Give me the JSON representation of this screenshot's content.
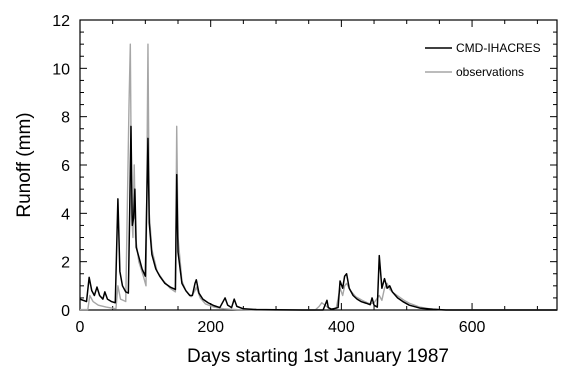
{
  "chart_data": {
    "type": "line",
    "title": "",
    "xlabel": "Days starting 1st January 1987",
    "ylabel": "Runoff (mm)",
    "xlim": [
      0,
      730
    ],
    "ylim": [
      0,
      12
    ],
    "xticks": [
      0,
      200,
      400,
      600
    ],
    "yticks": [
      0,
      2,
      4,
      6,
      8,
      10,
      12
    ],
    "legend_position": "top-right",
    "grid": false,
    "series": [
      {
        "name": "CMD-IHACRES",
        "color": "#000000",
        "points": [
          [
            0,
            0.45
          ],
          [
            10,
            0.35
          ],
          [
            14,
            1.35
          ],
          [
            18,
            0.8
          ],
          [
            22,
            0.6
          ],
          [
            26,
            0.95
          ],
          [
            30,
            0.6
          ],
          [
            35,
            0.45
          ],
          [
            38,
            0.75
          ],
          [
            42,
            0.45
          ],
          [
            48,
            0.35
          ],
          [
            54,
            0.3
          ],
          [
            58,
            4.6
          ],
          [
            61,
            1.6
          ],
          [
            65,
            1.0
          ],
          [
            70,
            0.75
          ],
          [
            74,
            0.7
          ],
          [
            76,
            4.0
          ],
          [
            78,
            7.6
          ],
          [
            80,
            3.5
          ],
          [
            82,
            3.8
          ],
          [
            84,
            5.0
          ],
          [
            86,
            2.6
          ],
          [
            90,
            2.2
          ],
          [
            95,
            1.7
          ],
          [
            100,
            1.4
          ],
          [
            104,
            7.1
          ],
          [
            106,
            3.6
          ],
          [
            110,
            2.3
          ],
          [
            116,
            1.7
          ],
          [
            122,
            1.4
          ],
          [
            130,
            1.1
          ],
          [
            138,
            0.95
          ],
          [
            146,
            0.85
          ],
          [
            148,
            5.6
          ],
          [
            150,
            2.4
          ],
          [
            156,
            1.1
          ],
          [
            162,
            0.8
          ],
          [
            168,
            0.6
          ],
          [
            172,
            0.6
          ],
          [
            176,
            1.1
          ],
          [
            178,
            1.25
          ],
          [
            182,
            0.7
          ],
          [
            188,
            0.45
          ],
          [
            196,
            0.3
          ],
          [
            205,
            0.18
          ],
          [
            214,
            0.1
          ],
          [
            222,
            0.5
          ],
          [
            226,
            0.2
          ],
          [
            232,
            0.1
          ],
          [
            236,
            0.45
          ],
          [
            240,
            0.15
          ],
          [
            250,
            0.05
          ],
          [
            270,
            0.02
          ],
          [
            300,
            0.01
          ],
          [
            340,
            0.0
          ],
          [
            368,
            0.0
          ],
          [
            372,
            0.0
          ],
          [
            378,
            0.4
          ],
          [
            380,
            0.1
          ],
          [
            385,
            0.03
          ],
          [
            395,
            0.1
          ],
          [
            398,
            1.2
          ],
          [
            402,
            0.9
          ],
          [
            405,
            1.4
          ],
          [
            408,
            1.5
          ],
          [
            412,
            0.9
          ],
          [
            418,
            0.6
          ],
          [
            424,
            0.45
          ],
          [
            430,
            0.35
          ],
          [
            438,
            0.28
          ],
          [
            444,
            0.22
          ],
          [
            447,
            0.5
          ],
          [
            450,
            0.2
          ],
          [
            455,
            0.12
          ],
          [
            458,
            2.25
          ],
          [
            462,
            0.9
          ],
          [
            466,
            1.3
          ],
          [
            470,
            0.9
          ],
          [
            474,
            1.0
          ],
          [
            478,
            0.75
          ],
          [
            486,
            0.5
          ],
          [
            494,
            0.35
          ],
          [
            504,
            0.2
          ],
          [
            520,
            0.08
          ],
          [
            540,
            0.03
          ],
          [
            560,
            0.0
          ],
          [
            730,
            0.0
          ]
        ]
      },
      {
        "name": "observations",
        "color": "#a6a6a6",
        "points": [
          [
            0,
            0.02
          ],
          [
            12,
            0.02
          ],
          [
            15,
            0.6
          ],
          [
            20,
            0.35
          ],
          [
            28,
            0.2
          ],
          [
            40,
            0.12
          ],
          [
            55,
            0.05
          ],
          [
            58,
            1.0
          ],
          [
            62,
            0.45
          ],
          [
            70,
            0.35
          ],
          [
            75,
            8.5
          ],
          [
            77,
            11.0
          ],
          [
            79,
            4.0
          ],
          [
            81,
            3.0
          ],
          [
            83,
            6.0
          ],
          [
            85,
            3.0
          ],
          [
            90,
            2.0
          ],
          [
            97,
            1.4
          ],
          [
            101,
            1.0
          ],
          [
            104,
            11.0
          ],
          [
            106,
            4.0
          ],
          [
            110,
            2.5
          ],
          [
            118,
            1.6
          ],
          [
            128,
            1.2
          ],
          [
            138,
            0.9
          ],
          [
            146,
            0.75
          ],
          [
            148,
            7.6
          ],
          [
            150,
            3.0
          ],
          [
            156,
            1.2
          ],
          [
            162,
            0.8
          ],
          [
            170,
            0.55
          ],
          [
            176,
            0.8
          ],
          [
            178,
            0.95
          ],
          [
            184,
            0.5
          ],
          [
            192,
            0.25
          ],
          [
            205,
            0.12
          ],
          [
            220,
            0.05
          ],
          [
            240,
            0.02
          ],
          [
            300,
            0.0
          ],
          [
            360,
            0.0
          ],
          [
            366,
            0.15
          ],
          [
            370,
            0.3
          ],
          [
            375,
            0.2
          ],
          [
            382,
            0.05
          ],
          [
            392,
            0.05
          ],
          [
            398,
            0.9
          ],
          [
            402,
            0.6
          ],
          [
            405,
            1.0
          ],
          [
            408,
            1.1
          ],
          [
            414,
            0.8
          ],
          [
            422,
            0.55
          ],
          [
            432,
            0.4
          ],
          [
            444,
            0.25
          ],
          [
            450,
            0.3
          ],
          [
            458,
            0.6
          ],
          [
            462,
            0.4
          ],
          [
            466,
            0.9
          ],
          [
            470,
            1.1
          ],
          [
            474,
            0.85
          ],
          [
            480,
            0.7
          ],
          [
            488,
            0.55
          ],
          [
            496,
            0.4
          ],
          [
            504,
            0.28
          ],
          [
            512,
            0.2
          ],
          [
            520,
            0.12
          ],
          [
            535,
            0.05
          ],
          [
            550,
            0.02
          ],
          [
            570,
            0.0
          ],
          [
            730,
            0.0
          ]
        ]
      }
    ]
  }
}
